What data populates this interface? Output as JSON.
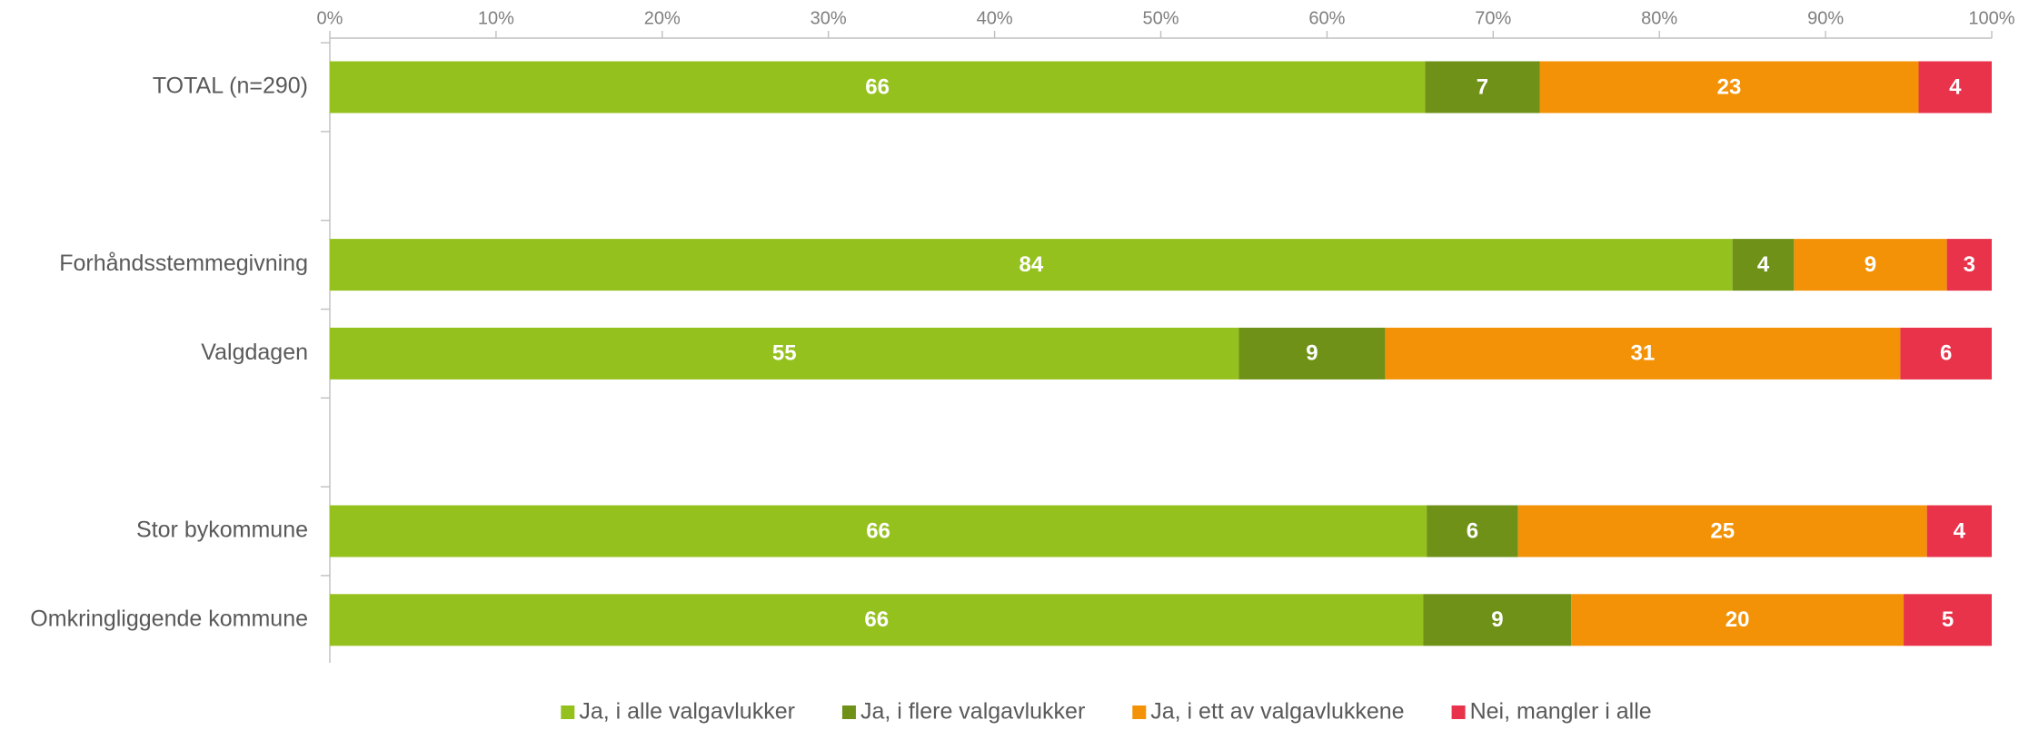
{
  "chart_data": {
    "type": "stacked_barh",
    "categories": [
      "TOTAL (n=290)",
      null,
      "Forhåndsstemmegivning",
      "Valgdagen",
      null,
      "Stor bykommune",
      "Omkringliggende kommune"
    ],
    "series": [
      {
        "name": "Ja, i alle valgavlukker",
        "color": "#95c11f",
        "values": [
          65.9,
          null,
          84.4,
          54.7,
          null,
          66.0,
          65.8
        ],
        "value_labels": [
          "66",
          null,
          "84",
          "55",
          null,
          "66",
          "66"
        ]
      },
      {
        "name": "Ja, i flere valgavlukker",
        "color": "#6f9118",
        "values": [
          6.9,
          null,
          3.7,
          8.8,
          null,
          5.5,
          8.9
        ],
        "value_labels": [
          "7",
          null,
          "4",
          "9",
          null,
          "6",
          "9"
        ]
      },
      {
        "name": "Ja, i ett av valgavlukkene",
        "color": "#f39207",
        "values": [
          22.8,
          null,
          9.2,
          31.0,
          null,
          24.6,
          20.0
        ],
        "value_labels": [
          "23",
          null,
          "9",
          "31",
          null,
          "25",
          "20"
        ]
      },
      {
        "name": "Nei, mangler i alle",
        "color": "#e8334a",
        "values": [
          4.4,
          null,
          2.7,
          5.5,
          null,
          3.9,
          5.3
        ],
        "value_labels": [
          "4",
          null,
          "3",
          "6",
          null,
          "4",
          "5"
        ]
      }
    ],
    "xlim": [
      0,
      100
    ],
    "xticks": [
      {
        "value": 0,
        "label": "0%"
      },
      {
        "value": 10,
        "label": "10%"
      },
      {
        "value": 20,
        "label": "20%"
      },
      {
        "value": 30,
        "label": "30%"
      },
      {
        "value": 40,
        "label": "40%"
      },
      {
        "value": 50,
        "label": "50%"
      },
      {
        "value": 60,
        "label": "60%"
      },
      {
        "value": 70,
        "label": "70%"
      },
      {
        "value": 80,
        "label": "80%"
      },
      {
        "value": 90,
        "label": "90%"
      },
      {
        "value": 100,
        "label": "100%"
      }
    ],
    "legend": "bottom"
  }
}
